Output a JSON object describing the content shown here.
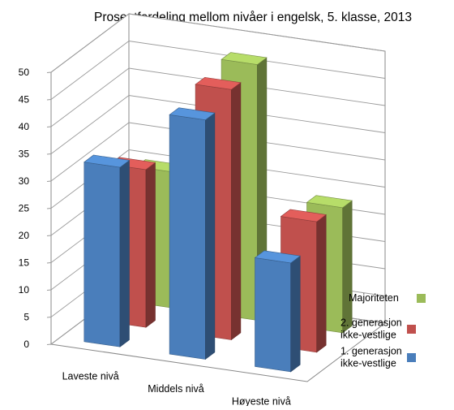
{
  "chart_data": {
    "type": "bar",
    "title": "Prosentfordeling mellom nivåer i engelsk, 5. klasse, 2013",
    "categories": [
      "Laveste nivå",
      "Middels nivå",
      "Høyeste nivå"
    ],
    "yticks": [
      0,
      5,
      10,
      15,
      20,
      25,
      30,
      35,
      40,
      45,
      50
    ],
    "ylim": [
      0,
      50
    ],
    "grid": true,
    "legend_position": "right",
    "series": [
      {
        "name": "1. generasjon ikke-vestlige",
        "legend_lines": [
          "1. generasjon",
          "ikke-vestlige"
        ],
        "color": "#4a7ebb",
        "values": [
          33,
          44,
          20
        ]
      },
      {
        "name": "2. generasjon ikke-vestlige",
        "legend_lines": [
          "2. generasjon",
          "ikke-vestlige"
        ],
        "color": "#c0504d",
        "values": [
          29,
          46,
          24
        ]
      },
      {
        "name": "Majoriteten",
        "legend_lines": [
          "Majoriteten"
        ],
        "color": "#9bbb59",
        "values": [
          25,
          47,
          23
        ]
      }
    ]
  }
}
